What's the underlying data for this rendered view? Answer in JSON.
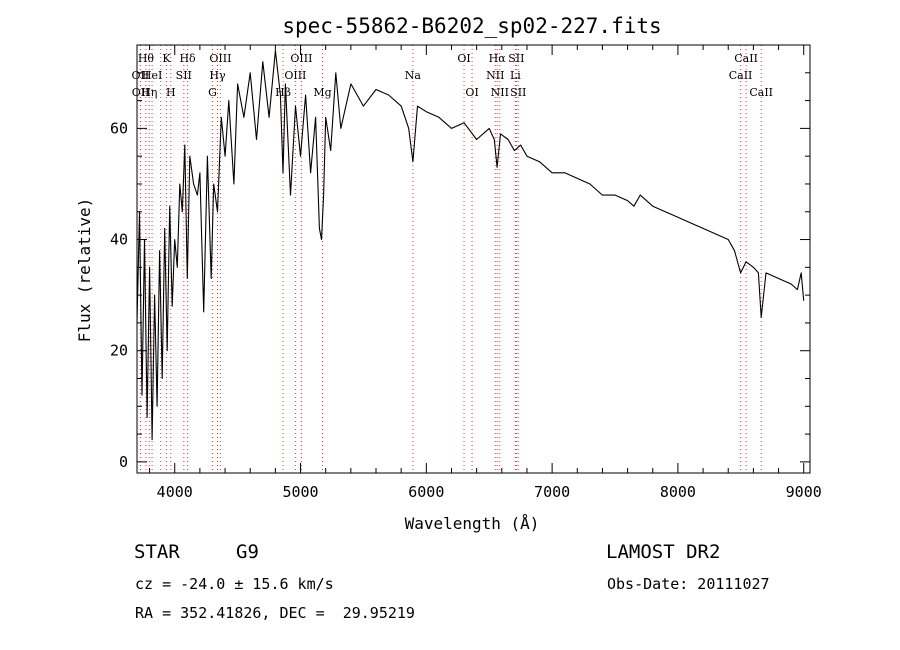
{
  "title": "spec-55862-B6202_sp02-227.fits",
  "footer": {
    "object_type": "STAR",
    "subclass": "G9",
    "survey": "LAMOST DR2",
    "redshift_line": "cz = -24.0 ± 15.6 km/s",
    "obs_date_line": "Obs-Date: 20111027",
    "coords_line": "RA = 352.41826, DEC =  29.95219"
  },
  "chart_data": {
    "type": "line",
    "title": "spec-55862-B6202_sp02-227.fits",
    "xlabel": "Wavelength (Å)",
    "ylabel": "Flux (relative)",
    "xlim": [
      3700,
      9050
    ],
    "ylim": [
      -2,
      75
    ],
    "xticks": [
      4000,
      5000,
      6000,
      7000,
      8000,
      9000
    ],
    "yticks": [
      0,
      20,
      40,
      60
    ],
    "grid": false,
    "series": [
      {
        "x": [
          3700,
          3720,
          3740,
          3760,
          3780,
          3800,
          3820,
          3840,
          3860,
          3880,
          3900,
          3920,
          3940,
          3960,
          3980,
          4000,
          4020,
          4040,
          4060,
          4080,
          4100,
          4120,
          4150,
          4180,
          4200,
          4230,
          4260,
          4290,
          4310,
          4340,
          4370,
          4400,
          4430,
          4470,
          4500,
          4550,
          4600,
          4650,
          4700,
          4750,
          4800,
          4840,
          4861,
          4880,
          4920,
          4960,
          5000,
          5040,
          5080,
          5120,
          5150,
          5167,
          5183,
          5200,
          5240,
          5280,
          5320,
          5400,
          5500,
          5600,
          5700,
          5800,
          5860,
          5893,
          5930,
          6000,
          6100,
          6200,
          6300,
          6400,
          6500,
          6540,
          6563,
          6590,
          6650,
          6700,
          6750,
          6800,
          6900,
          7000,
          7100,
          7200,
          7300,
          7400,
          7500,
          7600,
          7650,
          7700,
          7800,
          7900,
          8000,
          8100,
          8200,
          8300,
          8400,
          8450,
          8498,
          8542,
          8600,
          8640,
          8662,
          8700,
          8800,
          8900,
          8950,
          8980,
          9000
        ],
        "y": [
          25,
          45,
          12,
          40,
          8,
          35,
          4,
          30,
          10,
          38,
          15,
          42,
          20,
          46,
          28,
          40,
          35,
          50,
          45,
          57,
          33,
          55,
          50,
          48,
          52,
          27,
          55,
          33,
          50,
          45,
          62,
          55,
          65,
          50,
          68,
          62,
          70,
          58,
          72,
          62,
          74,
          66,
          52,
          68,
          48,
          64,
          55,
          66,
          52,
          62,
          42,
          40,
          48,
          62,
          56,
          70,
          60,
          68,
          64,
          67,
          66,
          64,
          60,
          54,
          64,
          63,
          62,
          60,
          61,
          58,
          60,
          58,
          53,
          59,
          58,
          56,
          57,
          55,
          54,
          52,
          52,
          51,
          50,
          48,
          48,
          47,
          46,
          48,
          46,
          45,
          44,
          43,
          42,
          41,
          40,
          38,
          34,
          36,
          35,
          34,
          26,
          34,
          33,
          32,
          31,
          34,
          29
        ]
      }
    ],
    "lines": [
      {
        "w": 3727,
        "label": "OII",
        "row": 2
      },
      {
        "w": 3729,
        "label": "OII",
        "row": 3
      },
      {
        "w": 3771,
        "label": "Hθ",
        "row": 1
      },
      {
        "w": 3798,
        "label": "Hη",
        "row": 3
      },
      {
        "w": 3820,
        "label": "HeI",
        "row": 2
      },
      {
        "w": 3889,
        "label": "",
        "row": 0
      },
      {
        "w": 3934,
        "label": "K",
        "row": 1
      },
      {
        "w": 3969,
        "label": "H",
        "row": 3
      },
      {
        "w": 4072,
        "label": "SII",
        "row": 2
      },
      {
        "w": 4102,
        "label": "Hδ",
        "row": 1
      },
      {
        "w": 4300,
        "label": "G",
        "row": 3
      },
      {
        "w": 4340,
        "label": "Hγ",
        "row": 2
      },
      {
        "w": 4363,
        "label": "OIII",
        "row": 1
      },
      {
        "w": 4861,
        "label": "Hβ",
        "row": 3
      },
      {
        "w": 4959,
        "label": "OIII",
        "row": 2
      },
      {
        "w": 5007,
        "label": "OIII",
        "row": 1
      },
      {
        "w": 5175,
        "label": "Mg",
        "row": 3
      },
      {
        "w": 5893,
        "label": "Na",
        "row": 2
      },
      {
        "w": 6300,
        "label": "OI",
        "row": 1
      },
      {
        "w": 6364,
        "label": "OI",
        "row": 3
      },
      {
        "w": 6548,
        "label": "NII",
        "row": 2
      },
      {
        "w": 6563,
        "label": "Hα",
        "row": 1
      },
      {
        "w": 6584,
        "label": "NII",
        "row": 3
      },
      {
        "w": 6708,
        "label": "Li",
        "row": 2
      },
      {
        "w": 6716,
        "label": "SII",
        "row": 1
      },
      {
        "w": 6731,
        "label": "SII",
        "row": 3
      },
      {
        "w": 8498,
        "label": "CaII",
        "row": 2
      },
      {
        "w": 8542,
        "label": "CaII",
        "row": 1
      },
      {
        "w": 8662,
        "label": "CaII",
        "row": 3
      }
    ]
  }
}
